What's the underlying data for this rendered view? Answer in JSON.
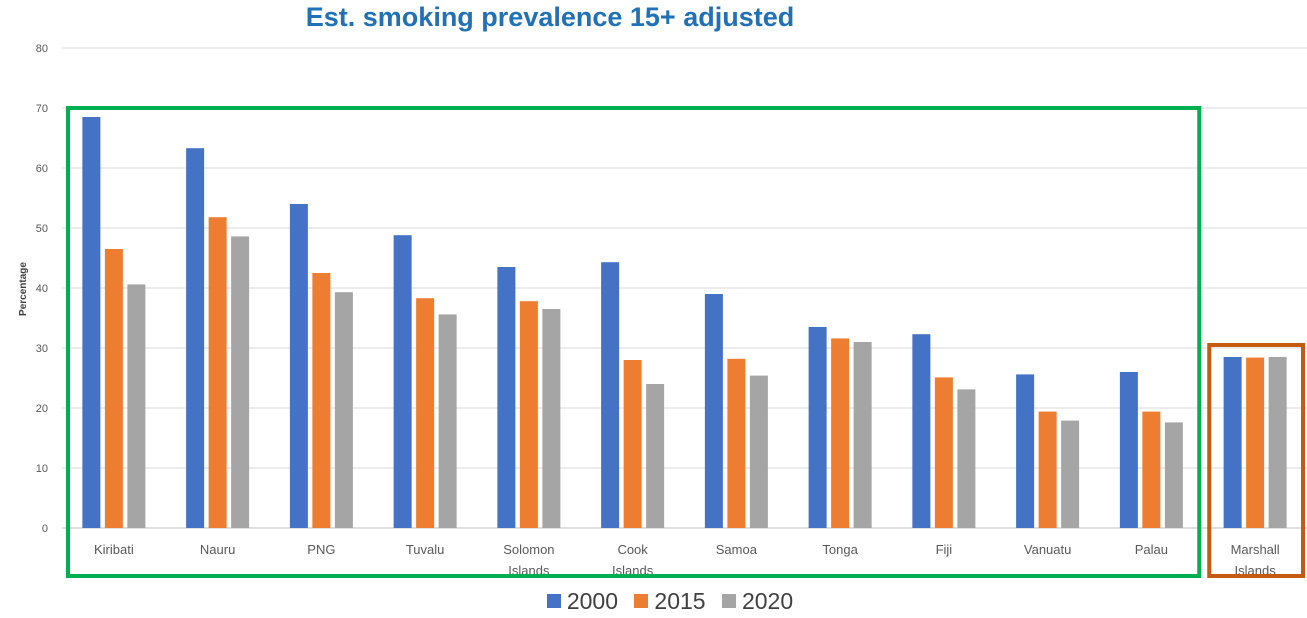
{
  "chart_data": {
    "type": "bar",
    "title": "Est. smoking prevalence 15+ adjusted",
    "ylabel": "Percentage",
    "xlabel": "",
    "ylim": [
      0,
      80
    ],
    "yticks": [
      0,
      10,
      20,
      30,
      40,
      50,
      60,
      70,
      80
    ],
    "grid": true,
    "legend_position": "bottom",
    "categories": [
      "Kiribati",
      "Nauru",
      "PNG",
      "Tuvalu",
      "Solomon Islands",
      "Cook Islands",
      "Samoa",
      "Tonga",
      "Fiji",
      "Vanuatu",
      "Palau",
      "Marshall Islands"
    ],
    "series": [
      {
        "name": "2000",
        "color": "#4472c4",
        "values": [
          68.5,
          63.3,
          54.0,
          48.8,
          43.5,
          44.3,
          39.0,
          33.5,
          32.3,
          25.6,
          26.0,
          28.5
        ]
      },
      {
        "name": "2015",
        "color": "#ed7d31",
        "values": [
          46.5,
          51.8,
          42.5,
          38.3,
          37.8,
          28.0,
          28.2,
          31.6,
          25.1,
          19.4,
          19.4,
          28.4
        ]
      },
      {
        "name": "2020",
        "color": "#a5a5a5",
        "values": [
          40.6,
          48.6,
          39.3,
          35.6,
          36.5,
          24.0,
          25.4,
          31.0,
          23.1,
          17.9,
          17.6,
          28.5
        ]
      }
    ],
    "highlight_boxes": [
      {
        "color": "#00b050",
        "categories": [
          "Kiribati",
          "Nauru",
          "PNG",
          "Tuvalu",
          "Solomon Islands",
          "Cook Islands",
          "Samoa",
          "Tonga",
          "Fiji",
          "Vanuatu",
          "Palau"
        ]
      },
      {
        "color": "#c55a11",
        "categories": [
          "Marshall Islands"
        ]
      }
    ]
  }
}
